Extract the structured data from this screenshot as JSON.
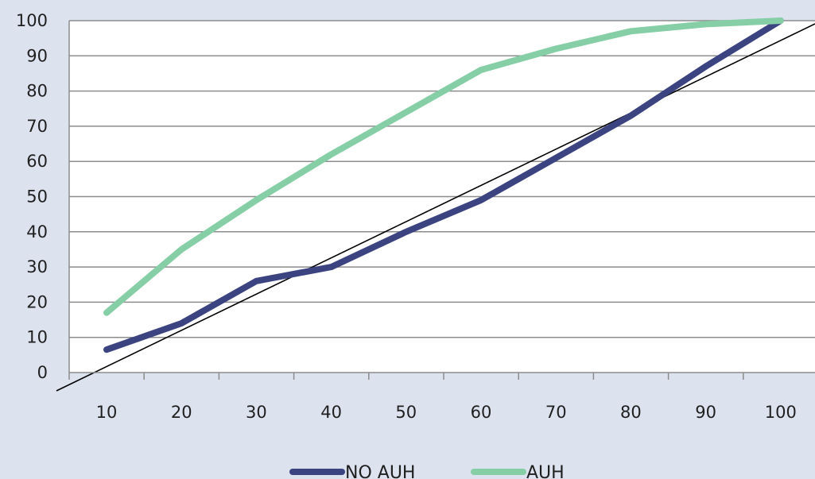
{
  "chart_data": {
    "type": "line",
    "title": "",
    "xlabel": "",
    "ylabel": "",
    "categories": [
      "10",
      "20",
      "30",
      "40",
      "50",
      "60",
      "70",
      "80",
      "90",
      "100"
    ],
    "ylim": [
      0,
      100
    ],
    "yticks": [
      "0",
      "10",
      "20",
      "30",
      "40",
      "50",
      "60",
      "70",
      "80",
      "90",
      "100"
    ],
    "grid": true,
    "legend_position": "bottom",
    "series": [
      {
        "name": "NO AUH",
        "color": "#3b4480",
        "values": [
          6.5,
          14,
          26,
          30,
          40,
          49,
          61,
          73,
          87,
          100
        ]
      },
      {
        "name": "AUH",
        "color": "#86cfa6",
        "values": [
          17,
          35,
          49,
          62,
          74,
          86,
          92,
          97,
          99,
          100
        ]
      }
    ],
    "reference_line": {
      "description": "diagonal",
      "color": "#000000"
    }
  }
}
